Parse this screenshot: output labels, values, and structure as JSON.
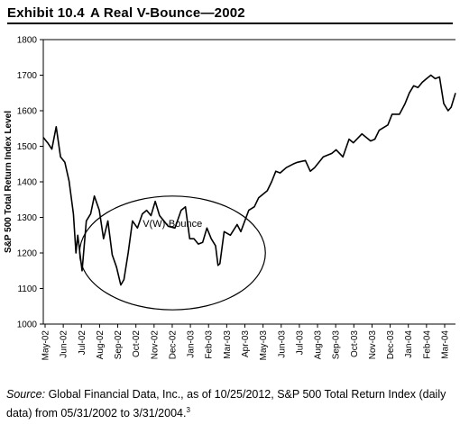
{
  "header": {
    "exhibit_number": "Exhibit 10.4",
    "exhibit_title": "A Real V-Bounce—2002"
  },
  "source": {
    "label": "Source:",
    "text": " Global Financial Data, Inc., as of 10/25/2012, S&P 500 Total Return Index (daily data) from 05/31/2002 to 3/31/2004.",
    "footnote": "3"
  },
  "chart_data": {
    "type": "line",
    "ylabel": "S&P 500 Total Return Index Level",
    "ylim": [
      1000,
      1800
    ],
    "yticks": [
      "1000",
      "1100",
      "1200",
      "1300",
      "1400",
      "1500",
      "1600",
      "1700",
      "1800"
    ],
    "xlabels": [
      "May-02",
      "Jun-02",
      "Jul-02",
      "Aug-02",
      "Sep-02",
      "Oct-02",
      "Nov-02",
      "Dec-02",
      "Jan-03",
      "Feb-03",
      "Mar-03",
      "Apr-03",
      "May-03",
      "Jun-03",
      "Jul-03",
      "Aug-03",
      "Sep-03",
      "Oct-03",
      "Nov-03",
      "Dec-03",
      "Jan-04",
      "Feb-04",
      "Mar-04"
    ],
    "grid": false,
    "annotation": {
      "text": "V(W)-Bounce",
      "x_range": [
        "2002-07-29",
        "2003-05-27"
      ],
      "y_range": [
        1040,
        1360
      ]
    },
    "series": [
      {
        "x": [
          "2002-05-31",
          "2002-06-07",
          "2002-06-14",
          "2002-06-21",
          "2002-06-28",
          "2002-07-05",
          "2002-07-12",
          "2002-07-19",
          "2002-07-23",
          "2002-07-26",
          "2002-08-02",
          "2002-08-09",
          "2002-08-16",
          "2002-08-22",
          "2002-08-30",
          "2002-09-06",
          "2002-09-13",
          "2002-09-20",
          "2002-09-27",
          "2002-10-04",
          "2002-10-09",
          "2002-10-16",
          "2002-10-23",
          "2002-10-31",
          "2002-11-08",
          "2002-11-15",
          "2002-11-22",
          "2002-11-29",
          "2002-12-06",
          "2002-12-13",
          "2002-12-20",
          "2002-12-31",
          "2003-01-10",
          "2003-01-17",
          "2003-01-24",
          "2003-01-31",
          "2003-02-07",
          "2003-02-14",
          "2003-02-21",
          "2003-02-28",
          "2003-03-07",
          "2003-03-11",
          "2003-03-14",
          "2003-03-21",
          "2003-03-31",
          "2003-04-11",
          "2003-04-17",
          "2003-04-30",
          "2003-05-09",
          "2003-05-16",
          "2003-05-30",
          "2003-06-06",
          "2003-06-13",
          "2003-06-20",
          "2003-06-30",
          "2003-07-11",
          "2003-07-18",
          "2003-07-31",
          "2003-08-08",
          "2003-08-15",
          "2003-08-29",
          "2003-09-12",
          "2003-09-19",
          "2003-09-30",
          "2003-10-10",
          "2003-10-17",
          "2003-10-31",
          "2003-11-14",
          "2003-11-21",
          "2003-11-28",
          "2003-12-12",
          "2003-12-19",
          "2003-12-31",
          "2004-01-09",
          "2004-01-16",
          "2004-01-23",
          "2004-01-30",
          "2004-02-06",
          "2004-02-13",
          "2004-02-20",
          "2004-02-27",
          "2004-03-05",
          "2004-03-12",
          "2004-03-19",
          "2004-03-24",
          "2004-03-31"
        ],
        "values": [
          1525,
          1510,
          1492,
          1555,
          1470,
          1455,
          1402,
          1310,
          1200,
          1250,
          1150,
          1290,
          1310,
          1360,
          1320,
          1240,
          1290,
          1195,
          1160,
          1110,
          1125,
          1200,
          1290,
          1270,
          1310,
          1320,
          1305,
          1345,
          1305,
          1290,
          1275,
          1270,
          1320,
          1330,
          1240,
          1240,
          1225,
          1230,
          1270,
          1240,
          1220,
          1165,
          1170,
          1260,
          1250,
          1280,
          1260,
          1320,
          1330,
          1355,
          1375,
          1400,
          1430,
          1425,
          1440,
          1450,
          1455,
          1460,
          1430,
          1440,
          1470,
          1480,
          1490,
          1470,
          1520,
          1510,
          1535,
          1515,
          1520,
          1545,
          1560,
          1590,
          1590,
          1620,
          1650,
          1670,
          1665,
          1680,
          1690,
          1700,
          1690,
          1695,
          1620,
          1600,
          1610,
          1650
        ]
      }
    ]
  }
}
